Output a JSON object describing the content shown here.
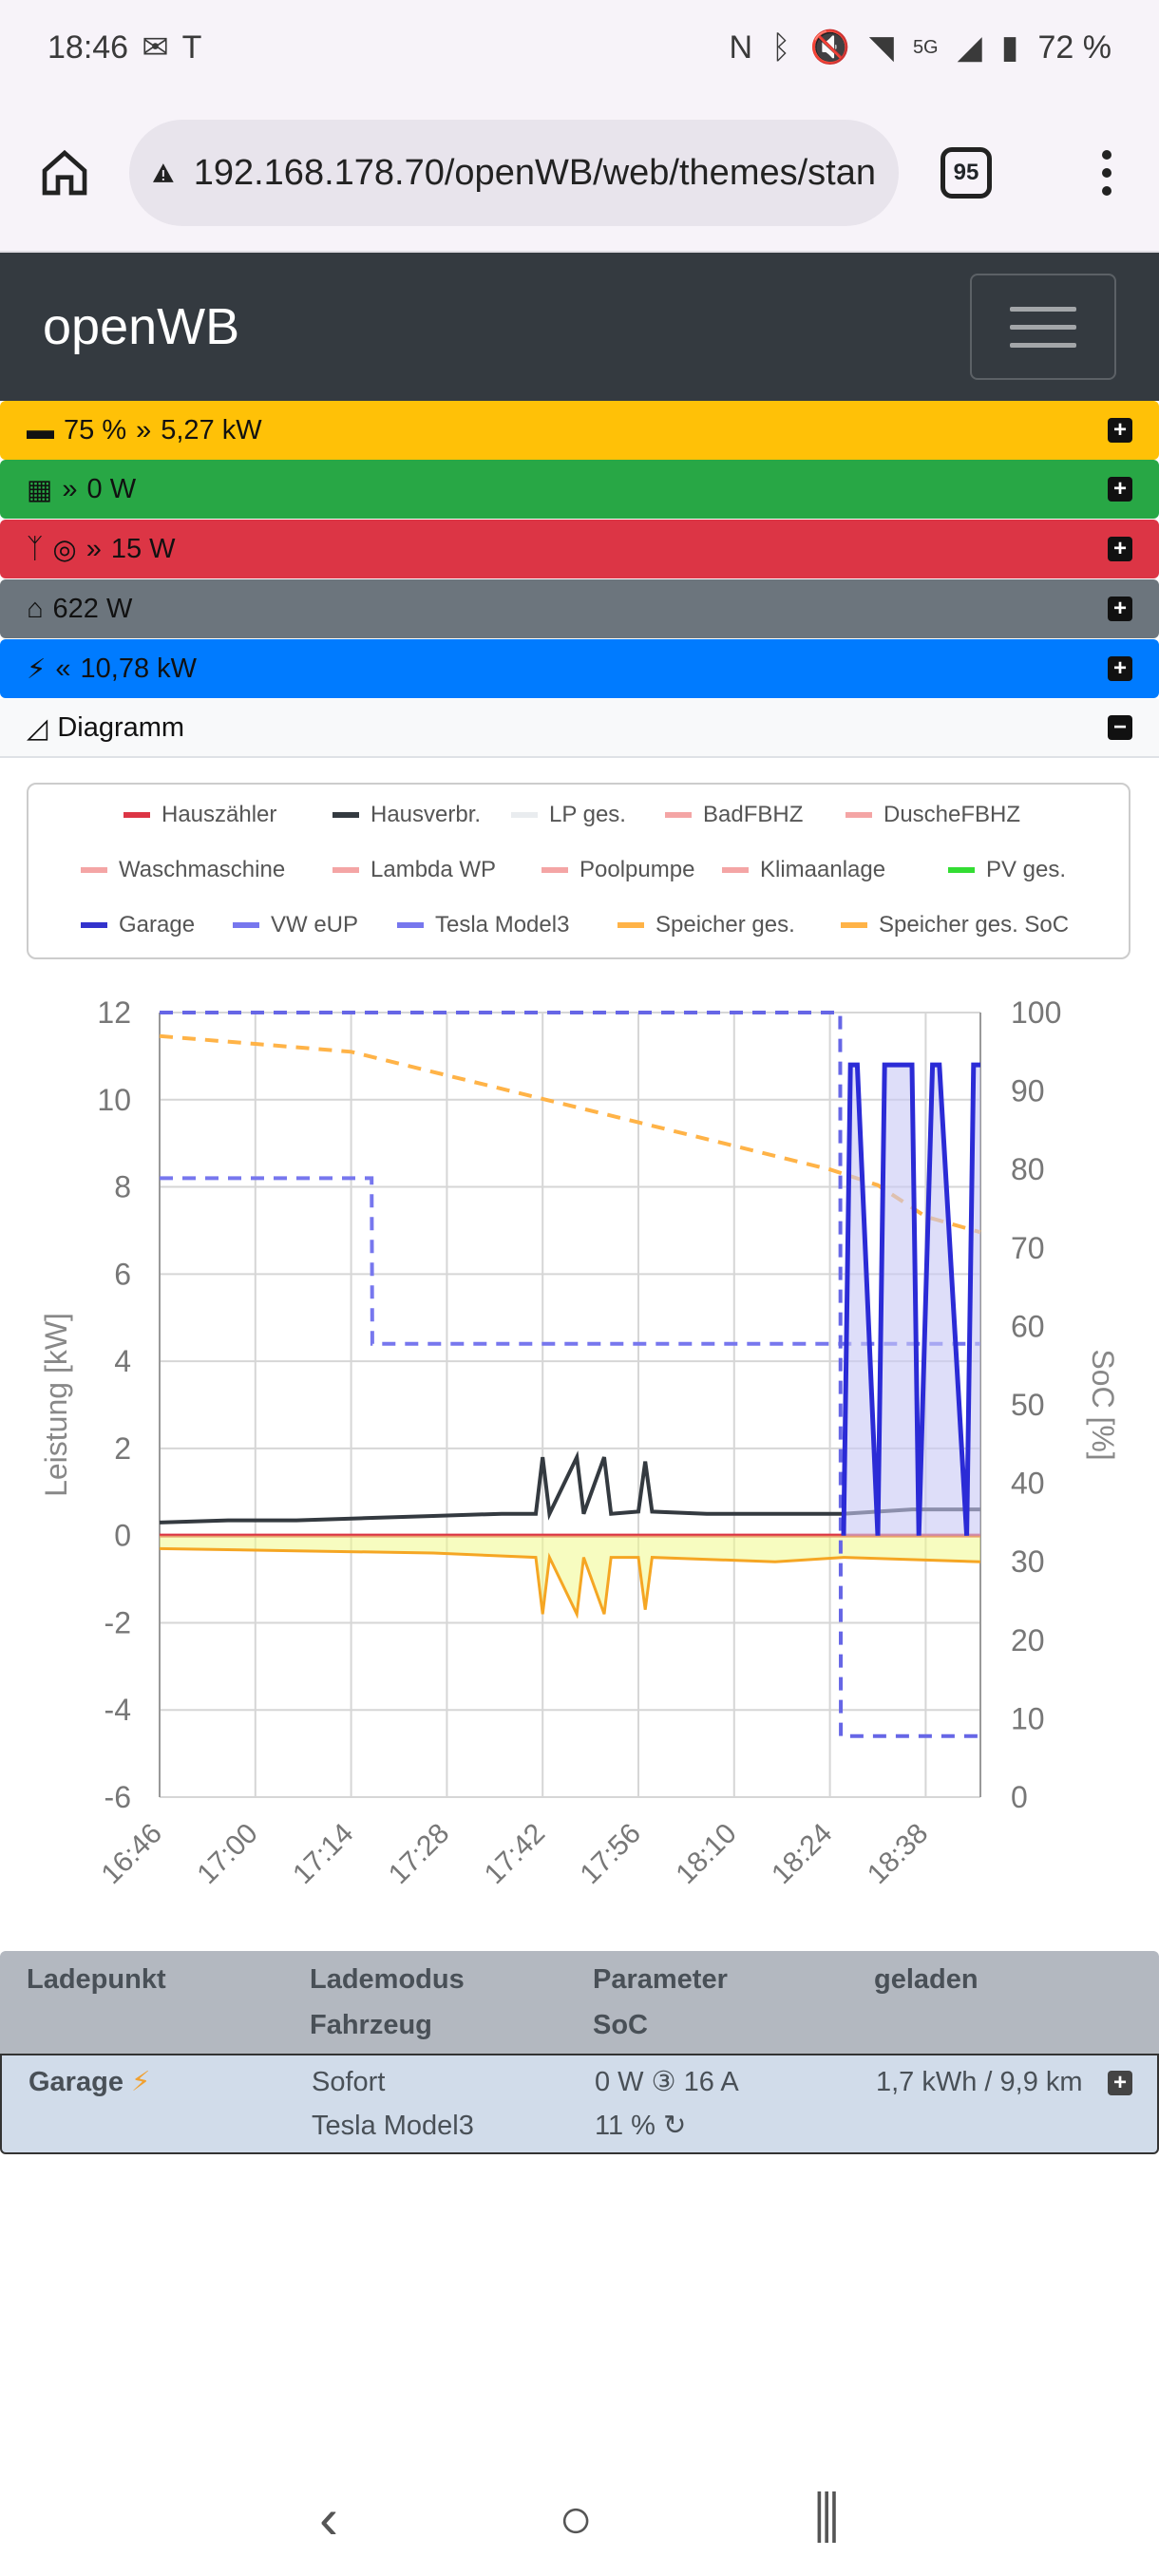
{
  "status_bar": {
    "time": "18:46",
    "battery": "72 %",
    "network": "5G"
  },
  "browser": {
    "url": "192.168.178.70/openWB/web/themes/stan",
    "tab_count": "95"
  },
  "navbar": {
    "brand": "openWB"
  },
  "summary": {
    "battery": {
      "soc": "75 %",
      "power": "5,27 kW"
    },
    "pv": {
      "power": "0 W"
    },
    "grid": {
      "power": "15 W"
    },
    "house": {
      "power": "622 W"
    },
    "chargepoints": {
      "power": "10,78 kW"
    },
    "diagram": {
      "label": "Diagramm"
    }
  },
  "legend": [
    {
      "label": "Hauszähler",
      "color": "#dc3545"
    },
    {
      "label": "Hausverbr.",
      "color": "#343a40"
    },
    {
      "label": "LP ges.",
      "color": "#e9ecef"
    },
    {
      "label": "BadFBHZ",
      "color": "#f4a5a5"
    },
    {
      "label": "DuscheFBHZ",
      "color": "#f4a5a5"
    },
    {
      "label": "Waschmaschine",
      "color": "#f4a5a5"
    },
    {
      "label": "Lambda WP",
      "color": "#f4a5a5"
    },
    {
      "label": "Poolpumpe",
      "color": "#f4a5a5"
    },
    {
      "label": "Klimaanlage",
      "color": "#f4a5a5"
    },
    {
      "label": "PV ges.",
      "color": "#33dd33"
    },
    {
      "label": "Garage",
      "color": "#3333cc"
    },
    {
      "label": "VW eUP",
      "color": "#7777ee"
    },
    {
      "label": "Tesla Model3",
      "color": "#7777ee"
    },
    {
      "label": "Speicher ges.",
      "color": "#ffb347"
    },
    {
      "label": "Speicher ges. SoC",
      "color": "#ffb347"
    }
  ],
  "chart_data": {
    "type": "line",
    "ylabel": "Leistung [kW]",
    "y2label": "SoC [%]",
    "ylim": [
      -6,
      12
    ],
    "y2lim": [
      0,
      100
    ],
    "yticks": [
      "12",
      "10",
      "8",
      "6",
      "4",
      "2",
      "0",
      "-2",
      "-4",
      "-6"
    ],
    "y2ticks": [
      "100",
      "90",
      "80",
      "70",
      "60",
      "50",
      "40",
      "30",
      "20",
      "10",
      "0"
    ],
    "xticks": [
      "16:46",
      "17:00",
      "17:14",
      "17:28",
      "17:42",
      "17:56",
      "18:10",
      "18:24",
      "18:38"
    ],
    "x_minutes": [
      0,
      14,
      28,
      42,
      56,
      70,
      84,
      98,
      112
    ],
    "series": [
      {
        "name": "Hausverbr.",
        "x": [
          0,
          10,
          20,
          30,
          40,
          50,
          55,
          56,
          57,
          61,
          62,
          65,
          66,
          70,
          71,
          72,
          80,
          90,
          100,
          110,
          120
        ],
        "values": [
          0.3,
          0.35,
          0.35,
          0.4,
          0.45,
          0.5,
          0.5,
          1.8,
          0.5,
          1.8,
          0.5,
          1.8,
          0.5,
          0.55,
          1.7,
          0.55,
          0.5,
          0.5,
          0.5,
          0.6,
          0.6
        ]
      },
      {
        "name": "Speicher ges.",
        "x": [
          0,
          20,
          40,
          55,
          56,
          57,
          61,
          62,
          65,
          66,
          70,
          71,
          72,
          90,
          100,
          120
        ],
        "values": [
          -0.3,
          -0.35,
          -0.4,
          -0.5,
          -1.8,
          -0.5,
          -1.8,
          -0.5,
          -1.8,
          -0.5,
          -0.5,
          -1.7,
          -0.5,
          -0.6,
          -0.5,
          -0.6
        ]
      },
      {
        "name": "Speicher ges. SoC",
        "x": [
          0,
          14,
          28,
          42,
          56,
          70,
          84,
          98,
          105,
          112,
          120
        ],
        "values": [
          97,
          96,
          95,
          92,
          89,
          86,
          83,
          80,
          78,
          74,
          72
        ]
      },
      {
        "name": "VW eUP",
        "x": [
          0,
          31,
          31.1,
          100,
          100.1,
          120
        ],
        "values": [
          8.2,
          8.2,
          4.4,
          4.4,
          4.4,
          4.4
        ]
      },
      {
        "name": "Tesla Model3",
        "x": [
          0,
          99.5,
          99.6,
          120
        ],
        "values": [
          12,
          12,
          -4.6,
          -4.6
        ]
      },
      {
        "name": "Garage",
        "x": [
          100,
          101,
          102,
          105,
          106,
          110,
          111,
          113,
          114,
          118,
          119,
          120
        ],
        "values": [
          0,
          10.8,
          10.8,
          0,
          10.8,
          10.8,
          0,
          10.8,
          10.8,
          0,
          10.8,
          10.8
        ]
      }
    ]
  },
  "table": {
    "headers": {
      "col1": "Ladepunkt",
      "col2a": "Lademodus",
      "col2b": "Fahrzeug",
      "col3a": "Parameter",
      "col3b": "SoC",
      "col4": "geladen"
    },
    "row": {
      "name": "Garage",
      "mode": "Sofort",
      "vehicle": "Tesla Model3",
      "power": "0 W ③ 16 A",
      "soc": "11 %",
      "charged": "1,7 kWh / 9,9 km"
    }
  }
}
